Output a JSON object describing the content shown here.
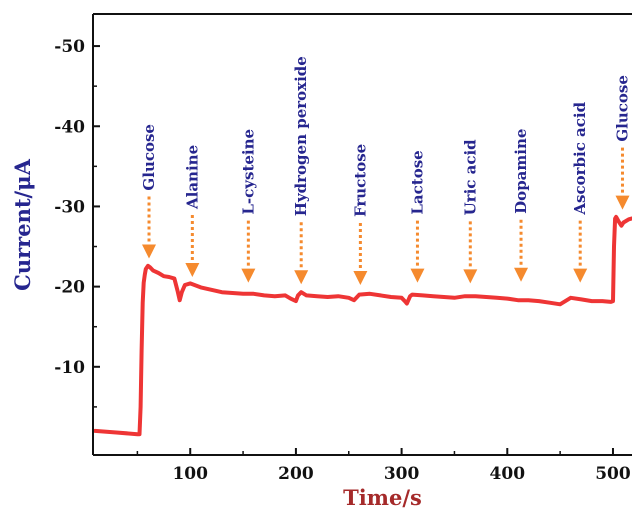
{
  "chart_data": {
    "type": "line",
    "title": "",
    "xlabel": "Time/s",
    "ylabel": "Current/μA",
    "xlim": [
      8,
      518
    ],
    "ylim": [
      1,
      -54
    ],
    "y_axis_inverted": true,
    "x_ticks": [
      100,
      200,
      300,
      400,
      500
    ],
    "x_tick_labels": [
      "100",
      "200",
      "300",
      "400",
      "500"
    ],
    "y_ticks": [
      -50,
      -40,
      -30,
      -20,
      -10
    ],
    "y_tick_labels": [
      "-50",
      "-40",
      "-30",
      "-20",
      "-10"
    ],
    "grid": false,
    "colors": {
      "line": "#ee3535",
      "arrow": "#f58a2e",
      "annotation_text": "#26268f",
      "xlabel": "#a52a2a",
      "ylabel": "#26268f",
      "axis": "#111111"
    },
    "series": [
      {
        "x": [
          10,
          30,
          50,
          52,
          53,
          54,
          55,
          56,
          57,
          58,
          60,
          62,
          65,
          70,
          75,
          80,
          85,
          88,
          90,
          92,
          95,
          100,
          110,
          120,
          130,
          140,
          150,
          160,
          170,
          180,
          190,
          195,
          200,
          202,
          205,
          210,
          220,
          230,
          240,
          250,
          255,
          260,
          270,
          280,
          290,
          300,
          303,
          305,
          308,
          310,
          320,
          330,
          340,
          350,
          360,
          370,
          380,
          390,
          400,
          410,
          420,
          430,
          440,
          450,
          455,
          460,
          470,
          480,
          490,
          498,
          500,
          501,
          502,
          503,
          505,
          508,
          510,
          515,
          518
        ],
        "y": [
          -2.0,
          -1.8,
          -1.6,
          -1.6,
          -5,
          -12,
          -18,
          -20.5,
          -21.5,
          -22.2,
          -22.6,
          -22.4,
          -22,
          -21.7,
          -21.3,
          -21.2,
          -21,
          -19.5,
          -18.3,
          -19.3,
          -20.2,
          -20.4,
          -19.9,
          -19.6,
          -19.3,
          -19.2,
          -19.1,
          -19.1,
          -18.9,
          -18.8,
          -18.9,
          -18.5,
          -18.2,
          -18.9,
          -19.3,
          -18.9,
          -18.8,
          -18.7,
          -18.8,
          -18.6,
          -18.3,
          -19,
          -19.1,
          -18.9,
          -18.7,
          -18.6,
          -18.2,
          -17.9,
          -18.8,
          -19,
          -18.9,
          -18.8,
          -18.7,
          -18.6,
          -18.8,
          -18.8,
          -18.7,
          -18.6,
          -18.5,
          -18.3,
          -18.3,
          -18.2,
          -18.0,
          -17.8,
          -18.2,
          -18.6,
          -18.4,
          -18.2,
          -18.2,
          -18.1,
          -18.2,
          -25,
          -28.5,
          -28.7,
          -28.2,
          -27.6,
          -28,
          -28.4,
          -28.5
        ]
      }
    ],
    "annotations": [
      {
        "label": "Glucose",
        "x": 61,
        "y_tip": -23.5
      },
      {
        "label": "Alanine",
        "x": 102,
        "y_tip": -21.2
      },
      {
        "label": "L-cysteine",
        "x": 155,
        "y_tip": -20.5
      },
      {
        "label": "Hydrogen peroxide",
        "x": 205,
        "y_tip": -20.3
      },
      {
        "label": "Fructose",
        "x": 261,
        "y_tip": -20.2
      },
      {
        "label": "Lactose",
        "x": 315,
        "y_tip": -20.5
      },
      {
        "label": "Uric acid",
        "x": 365,
        "y_tip": -20.4
      },
      {
        "label": "Dopamine",
        "x": 413,
        "y_tip": -20.6
      },
      {
        "label": "Ascorbic acid",
        "x": 469,
        "y_tip": -20.5
      },
      {
        "label": "Glucose",
        "x": 509,
        "y_tip": -29.6
      }
    ]
  }
}
